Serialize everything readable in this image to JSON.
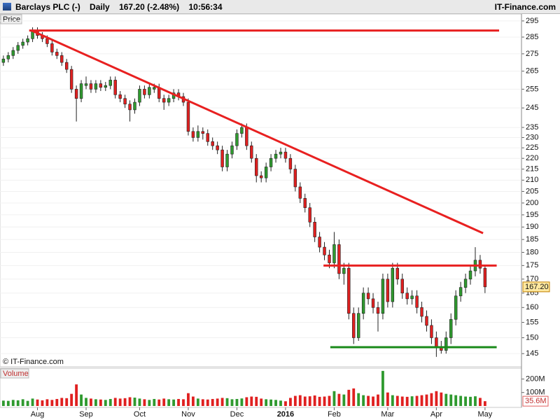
{
  "header": {
    "title": "Barclays PLC (-)",
    "period": "Daily",
    "quote": "167.20 (-2.48%)",
    "time": "10:56:34",
    "brand": "IT-Finance.com"
  },
  "chart_data": {
    "type": "candlestick",
    "price_panel_label": "Price",
    "volume_panel_label": "Volume",
    "watermark": "© IT-Finance.com",
    "categories": [
      null,
      null,
      null,
      null,
      null,
      null,
      null,
      "Aug",
      null,
      null,
      null,
      null,
      null,
      null,
      null,
      null,
      null,
      "Sep",
      null,
      null,
      null,
      null,
      null,
      null,
      null,
      null,
      null,
      null,
      "Oct",
      null,
      null,
      null,
      null,
      null,
      null,
      null,
      null,
      null,
      "Nov",
      null,
      null,
      null,
      null,
      null,
      null,
      null,
      null,
      null,
      "Dec",
      null,
      null,
      null,
      null,
      null,
      null,
      null,
      null,
      null,
      "2016",
      null,
      null,
      null,
      null,
      null,
      null,
      null,
      null,
      null,
      "Feb",
      null,
      null,
      null,
      null,
      null,
      null,
      null,
      null,
      null,
      null,
      "Mar",
      null,
      null,
      null,
      null,
      null,
      null,
      null,
      null,
      null,
      "Apr",
      null,
      null,
      null,
      null,
      null,
      null,
      null,
      null,
      null,
      "May"
    ],
    "open": [
      270,
      272,
      274,
      277,
      280,
      282,
      284,
      289,
      286,
      284,
      281,
      276,
      274,
      270,
      266,
      255,
      250,
      257,
      258,
      255,
      258,
      256,
      257,
      260,
      252,
      250,
      247,
      244,
      248,
      255,
      252,
      255,
      256,
      250,
      248,
      250,
      253,
      251,
      248,
      233,
      230,
      233,
      232,
      228,
      226,
      224,
      216,
      222,
      226,
      232,
      235,
      226,
      220,
      212,
      211,
      216,
      220,
      222,
      223,
      220,
      215,
      207,
      202,
      198,
      192,
      186,
      182,
      179,
      176,
      183,
      172,
      174,
      158,
      150,
      158,
      165,
      163,
      160,
      158,
      170,
      162,
      174,
      170,
      165,
      163,
      164,
      160,
      157,
      154,
      150,
      147,
      146,
      150,
      156,
      164,
      167,
      170,
      173,
      177,
      174
    ],
    "high": [
      274,
      276,
      279,
      282,
      284,
      286,
      291,
      291,
      288,
      286,
      283,
      278,
      276,
      272,
      268,
      257,
      260,
      262,
      260,
      260,
      260,
      259,
      262,
      262,
      254,
      252,
      249,
      250,
      257,
      257,
      258,
      258,
      258,
      252,
      252,
      255,
      255,
      253,
      250,
      235,
      236,
      235,
      234,
      230,
      228,
      226,
      224,
      228,
      234,
      237,
      237,
      228,
      222,
      214,
      218,
      222,
      224,
      225,
      225,
      222,
      217,
      209,
      204,
      200,
      194,
      188,
      184,
      181,
      188,
      185,
      176,
      176,
      160,
      160,
      167,
      167,
      165,
      162,
      172,
      172,
      176,
      176,
      172,
      167,
      166,
      166,
      162,
      159,
      156,
      152,
      149,
      152,
      158,
      166,
      169,
      172,
      175,
      182,
      179,
      175
    ],
    "low": [
      268,
      270,
      272,
      275,
      278,
      280,
      282,
      284,
      282,
      279,
      274,
      272,
      268,
      264,
      253,
      238,
      248,
      255,
      253,
      253,
      254,
      254,
      255,
      250,
      248,
      245,
      238,
      242,
      246,
      250,
      250,
      253,
      248,
      244,
      246,
      248,
      249,
      246,
      231,
      228,
      228,
      229,
      226,
      224,
      222,
      214,
      214,
      220,
      224,
      230,
      224,
      218,
      209,
      209,
      209,
      214,
      218,
      220,
      218,
      213,
      205,
      200,
      196,
      190,
      184,
      180,
      177,
      174,
      174,
      170,
      168,
      156,
      148,
      149,
      156,
      161,
      158,
      152,
      156,
      160,
      160,
      168,
      163,
      161,
      161,
      158,
      155,
      152,
      148,
      144,
      145,
      145,
      148,
      154,
      162,
      165,
      168,
      171,
      172,
      165
    ],
    "close": [
      272,
      274,
      277,
      280,
      282,
      284,
      289,
      286,
      284,
      281,
      276,
      274,
      270,
      266,
      255,
      250,
      258,
      258,
      255,
      258,
      256,
      257,
      260,
      252,
      250,
      247,
      244,
      248,
      255,
      252,
      256,
      256,
      250,
      248,
      250,
      253,
      251,
      248,
      233,
      230,
      233,
      232,
      228,
      226,
      224,
      216,
      222,
      226,
      232,
      235,
      226,
      220,
      212,
      211,
      216,
      220,
      222,
      223,
      220,
      215,
      207,
      202,
      198,
      192,
      186,
      182,
      179,
      176,
      183,
      172,
      174,
      158,
      150,
      158,
      165,
      163,
      160,
      158,
      170,
      162,
      174,
      170,
      165,
      163,
      164,
      160,
      157,
      154,
      150,
      147,
      146,
      150,
      156,
      164,
      167,
      170,
      173,
      177,
      174,
      167.2
    ],
    "up_color": "#2f9a2f",
    "down_color": "#e02020",
    "xlim": [
      -0.7,
      106.5
    ],
    "ylim": [
      141.4,
      299.4
    ],
    "log_scale": true,
    "grid": true,
    "yticks": [
      295,
      285,
      275,
      265,
      255,
      245,
      235,
      230,
      225,
      220,
      215,
      210,
      205,
      200,
      195,
      190,
      185,
      180,
      175,
      170,
      165,
      160,
      155,
      150,
      145
    ],
    "last_label": "167.20",
    "volume": {
      "values": [
        40,
        38,
        45,
        42,
        50,
        38,
        55,
        48,
        42,
        50,
        45,
        52,
        60,
        58,
        90,
        160,
        85,
        60,
        55,
        50,
        48,
        45,
        52,
        60,
        55,
        58,
        65,
        62,
        55,
        50,
        45,
        52,
        48,
        55,
        50,
        48,
        52,
        50,
        95,
        70,
        55,
        50,
        48,
        52,
        55,
        60,
        58,
        50,
        52,
        56,
        65,
        70,
        68,
        55,
        50,
        48,
        45,
        40,
        35,
        60,
        75,
        80,
        70,
        72,
        78,
        68,
        70,
        75,
        110,
        90,
        85,
        120,
        130,
        95,
        80,
        75,
        70,
        85,
        260,
        100,
        80,
        75,
        70,
        68,
        72,
        75,
        80,
        85,
        95,
        110,
        100,
        90,
        85,
        80,
        75,
        70,
        68,
        72,
        60,
        35.6
      ],
      "ylim": [
        0,
        280
      ],
      "yticks": [
        {
          "value": 100,
          "label": "100M"
        },
        {
          "value": 200,
          "label": "200M"
        }
      ],
      "last_label": "35.6M"
    },
    "trend_lines": [
      {
        "color": "#e82020",
        "x": [
          5.3,
          101.9
        ],
        "y": [
          289,
          289
        ]
      },
      {
        "color": "#e82020",
        "x": [
          5.8,
          98.6
        ],
        "y": [
          289,
          187.5
        ]
      },
      {
        "color": "#e82020",
        "x": [
          65.8,
          101.4
        ],
        "y": [
          175,
          175
        ]
      },
      {
        "color": "#1a8a1a",
        "x": [
          67.2,
          101.4
        ],
        "y": [
          147,
          147
        ]
      }
    ]
  }
}
